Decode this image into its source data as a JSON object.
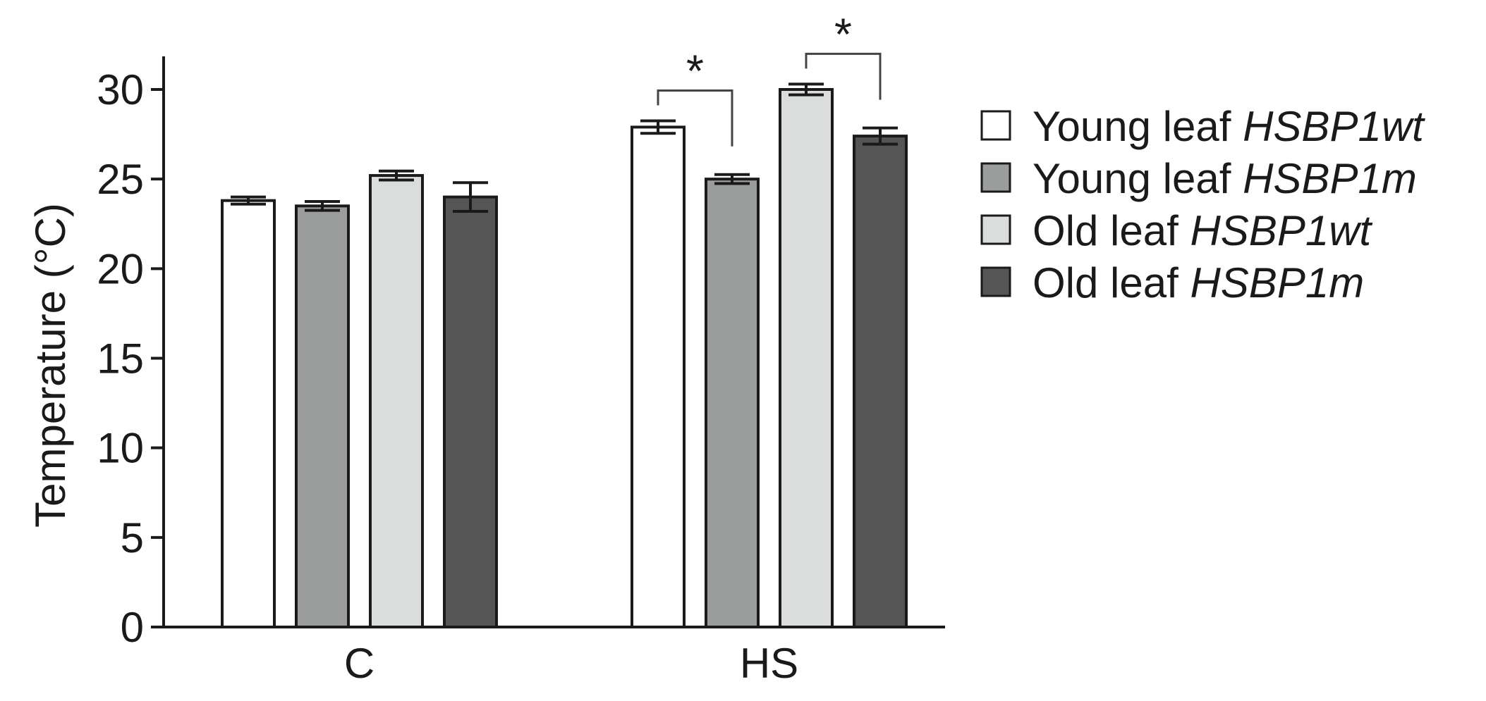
{
  "chart_data": {
    "type": "bar",
    "title": "",
    "xlabel": "",
    "ylabel": "Temperature (°C)",
    "ylim": [
      0,
      30
    ],
    "yticks": [
      0,
      5,
      10,
      15,
      20,
      25,
      30
    ],
    "grid": false,
    "legend_position": "right",
    "categories": [
      "C",
      "HS"
    ],
    "series": [
      {
        "name": "Young leaf",
        "name_italic": "HSBP1wt",
        "color": "#ffffff",
        "values": [
          23.8,
          27.9
        ],
        "errors": [
          0.2,
          0.35
        ]
      },
      {
        "name": "Young leaf",
        "name_italic": "HSBP1m",
        "color": "#9a9d9c",
        "values": [
          23.5,
          25.0
        ],
        "errors": [
          0.25,
          0.25
        ]
      },
      {
        "name": "Old leaf",
        "name_italic": "HSBP1wt",
        "color": "#dadddc",
        "values": [
          25.2,
          30.0
        ],
        "errors": [
          0.25,
          0.3
        ]
      },
      {
        "name": "Old leaf",
        "name_italic": "HSBP1m",
        "color": "#555555",
        "values": [
          24.0,
          27.4
        ],
        "errors": [
          0.8,
          0.45
        ]
      }
    ],
    "annotations": [
      {
        "text": "*",
        "category": "HS",
        "from_series": 0,
        "to_series": 1
      },
      {
        "text": "*",
        "category": "HS",
        "from_series": 2,
        "to_series": 3
      }
    ]
  }
}
